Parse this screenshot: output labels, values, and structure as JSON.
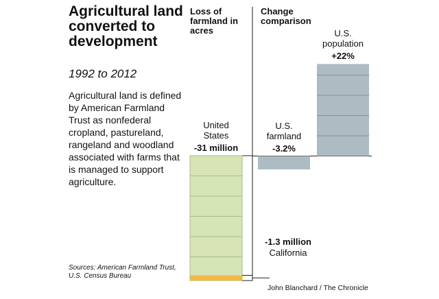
{
  "title": "Agricultural land converted to development",
  "subtitle": "1992 to 2012",
  "description": "Agricultural land is defined by American Farmland Trust as nonfederal cropland, pastureland, rangeland and woodland associated with farms that is managed to support agriculture.",
  "sources": "Sources: American Farmland Trust, U.S. Census Bureau",
  "credit": "John Blanchard / The Chronicle",
  "chart_data": [
    {
      "type": "bar",
      "title": "Loss of farmland in acres",
      "ylim": [
        -32,
        0
      ],
      "series": [
        {
          "name": "United States",
          "color": "#d6e4b6",
          "values": [
            -31
          ],
          "value_labels": [
            "-31 million"
          ]
        },
        {
          "name": "California",
          "color": "#f1b944",
          "values": [
            -1.3
          ],
          "value_labels": [
            "-1.3 million"
          ]
        }
      ]
    },
    {
      "type": "bar",
      "title": "Change comparison",
      "ylim": [
        -5,
        25
      ],
      "categories": [
        "U.S. farmland",
        "U.S. population"
      ],
      "values": [
        -3.2,
        22
      ],
      "value_labels": [
        "-3.2%",
        "+22%"
      ],
      "color": "#adbcc2"
    }
  ]
}
